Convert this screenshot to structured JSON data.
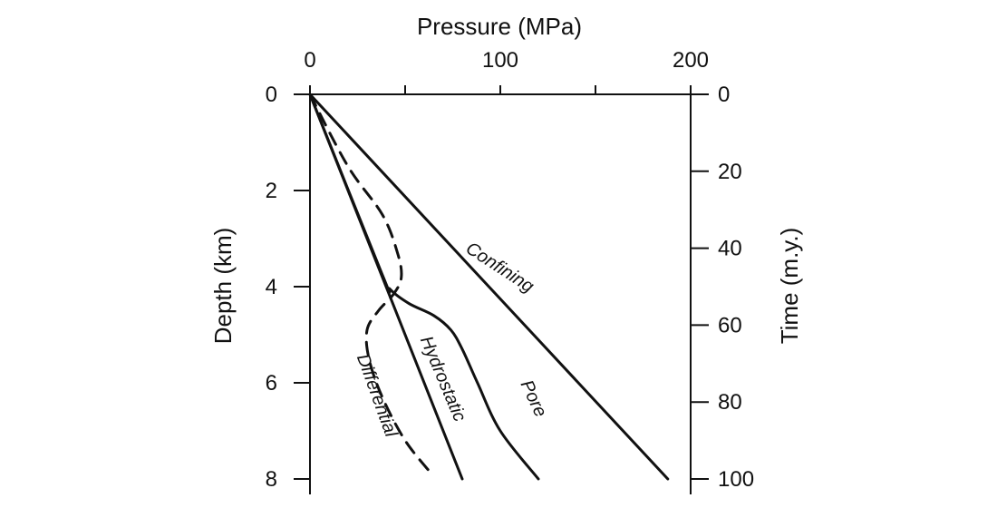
{
  "chart_data": {
    "type": "line",
    "title": "",
    "x_axis": {
      "label": "Pressure (MPa)",
      "position": "top",
      "range": [
        0,
        200
      ],
      "ticks": [
        0,
        50,
        100,
        150,
        200
      ],
      "tick_labels": [
        "0",
        "",
        "100",
        "",
        "200"
      ]
    },
    "y_axis_left": {
      "label": "Depth (km)",
      "range": [
        0,
        8
      ],
      "inverted": true,
      "ticks": [
        0,
        2,
        4,
        6,
        8
      ],
      "tick_labels": [
        "0",
        "2",
        "4",
        "6",
        "8"
      ]
    },
    "y_axis_right": {
      "label": "Time (m.y.)",
      "range": [
        0,
        100
      ],
      "inverted": true,
      "ticks": [
        0,
        20,
        40,
        60,
        80,
        100
      ],
      "tick_labels": [
        "0",
        "20",
        "40",
        "60",
        "80",
        "100"
      ]
    },
    "grid": false,
    "series": [
      {
        "name": "Confining",
        "style": "solid",
        "points": [
          [
            0,
            0
          ],
          [
            188,
            8
          ]
        ]
      },
      {
        "name": "Hydrostatic",
        "style": "solid",
        "points": [
          [
            0,
            0
          ],
          [
            80,
            8
          ]
        ]
      },
      {
        "name": "Pore",
        "style": "solid",
        "points": [
          [
            0,
            0
          ],
          [
            38,
            3.75
          ],
          [
            42,
            4.05
          ],
          [
            52,
            4.35
          ],
          [
            65,
            4.6
          ],
          [
            74,
            4.9
          ],
          [
            80,
            5.3
          ],
          [
            88,
            6.0
          ],
          [
            100,
            7.0
          ],
          [
            120,
            8
          ]
        ]
      },
      {
        "name": "Differential",
        "style": "dashed",
        "points": [
          [
            0,
            0
          ],
          [
            20,
            1.5
          ],
          [
            38,
            2.5
          ],
          [
            46,
            3.3
          ],
          [
            48,
            3.8
          ],
          [
            44,
            4.15
          ],
          [
            36,
            4.5
          ],
          [
            30,
            4.9
          ],
          [
            31,
            5.5
          ],
          [
            38,
            6.3
          ],
          [
            50,
            7.2
          ],
          [
            64,
            7.9
          ]
        ]
      }
    ]
  }
}
